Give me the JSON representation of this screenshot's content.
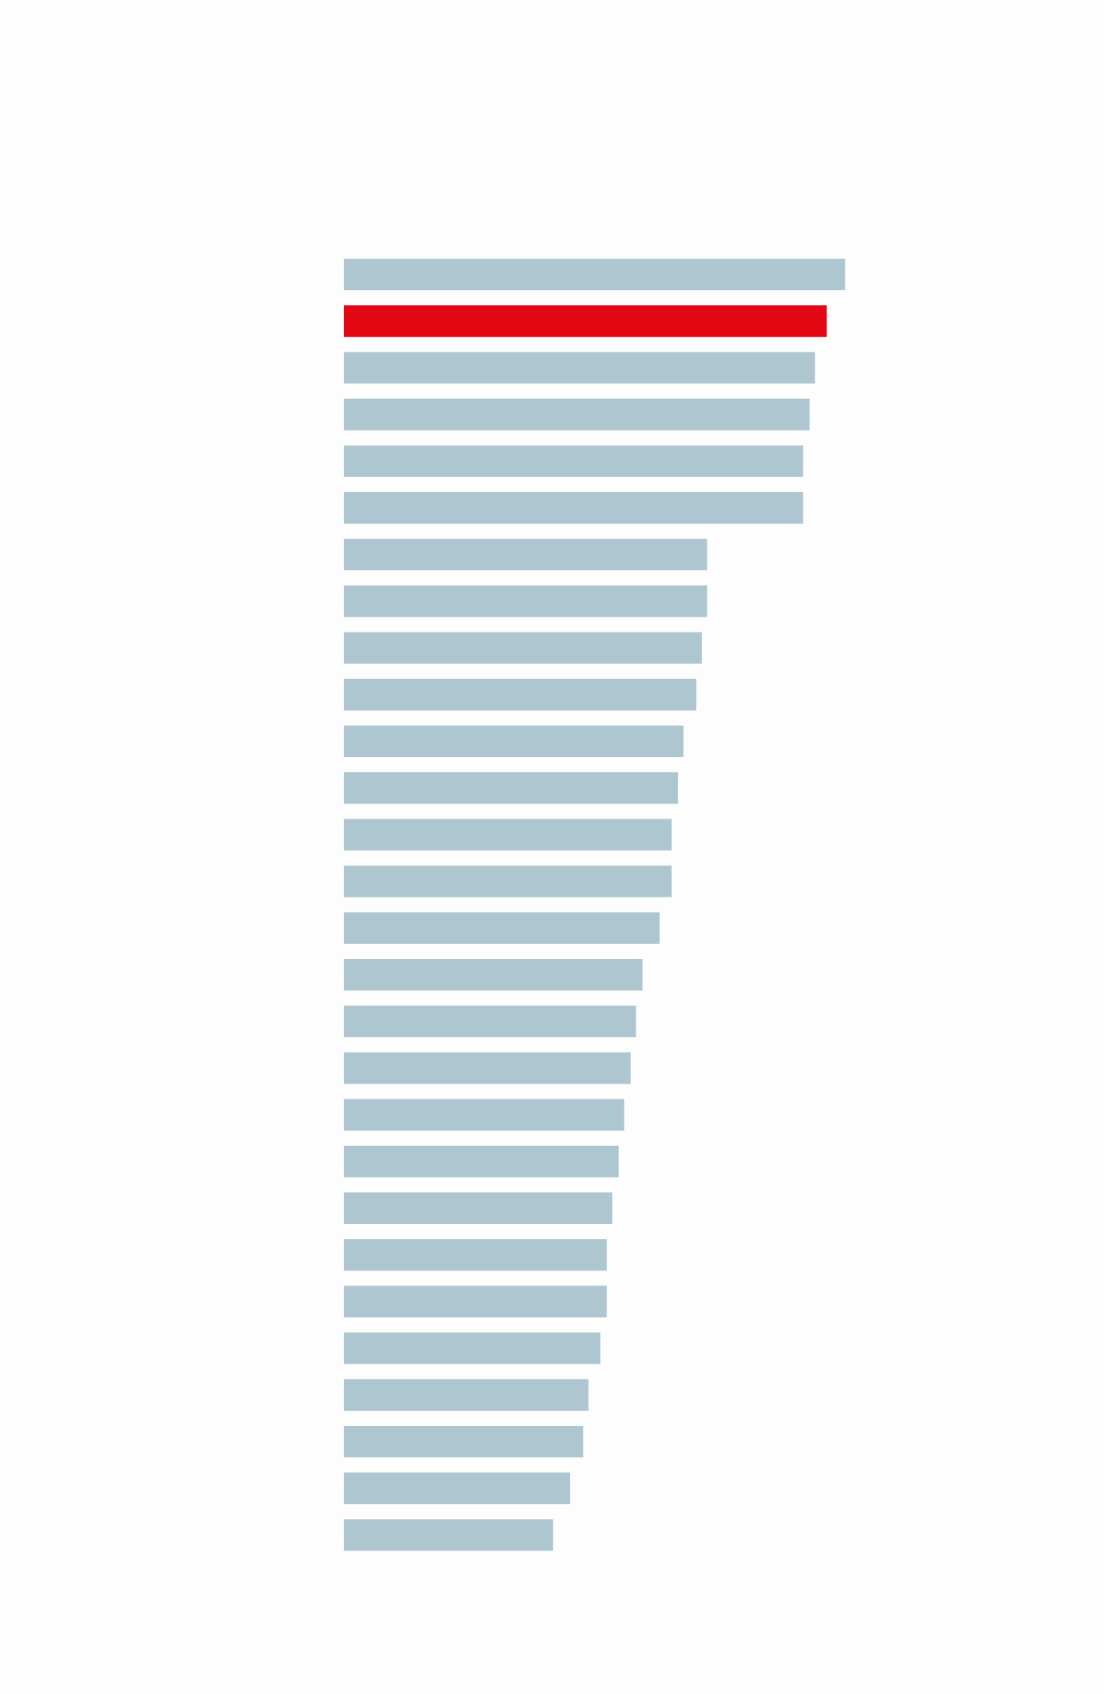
{
  "chart_data": {
    "type": "bar",
    "orientation": "horizontal",
    "values": [
      465,
      448,
      437,
      432,
      426,
      426,
      337,
      337,
      332,
      327,
      315,
      310,
      304,
      304,
      293,
      277,
      271,
      266,
      260,
      255,
      249,
      244,
      244,
      238,
      227,
      222,
      210,
      194
    ],
    "colors": [
      "#aec6d0",
      "#e30613",
      "#aec6d0",
      "#aec6d0",
      "#aec6d0",
      "#aec6d0",
      "#aec6d0",
      "#aec6d0",
      "#aec6d0",
      "#aec6d0",
      "#aec6d0",
      "#aec6d0",
      "#aec6d0",
      "#aec6d0",
      "#aec6d0",
      "#aec6d0",
      "#aec6d0",
      "#aec6d0",
      "#aec6d0",
      "#aec6d0",
      "#aec6d0",
      "#aec6d0",
      "#aec6d0",
      "#aec6d0",
      "#aec6d0",
      "#aec6d0",
      "#aec6d0",
      "#aec6d0"
    ]
  }
}
